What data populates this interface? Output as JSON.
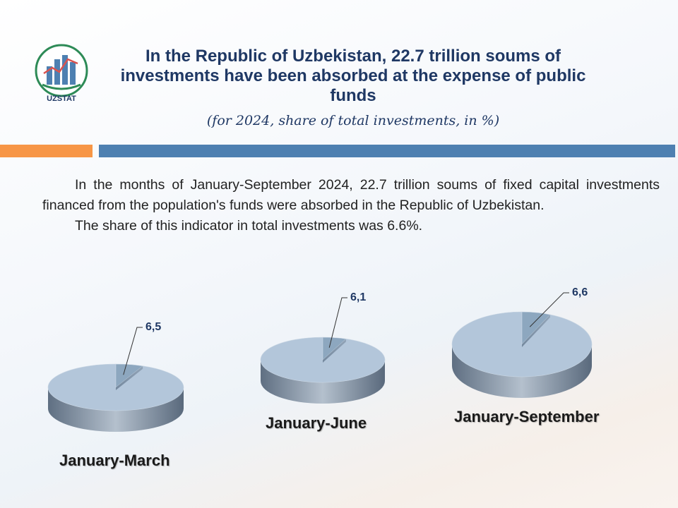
{
  "header": {
    "logo_text": "UZSTAT",
    "title": "In the Republic of Uzbekistan, 22.7 trillion soums of investments have been absorbed at the expense of public funds",
    "subtitle": "(for 2024, share of total investments, in %)"
  },
  "body": {
    "paragraph1": "In the months of January-September 2024, 22.7 trillion soums of fixed capital investments financed from the population's funds were absorbed in the Republic of Uzbekistan.",
    "paragraph2": "The share of this indicator in total investments was 6.6%."
  },
  "colors": {
    "pie_main": "#b3c6da",
    "pie_slice": "#8da7bf",
    "title_blue": "#1f3864",
    "bar_orange": "#f79646",
    "bar_blue": "#4e80b1"
  },
  "chart_data": {
    "type": "pie",
    "charts": [
      {
        "period": "January-March",
        "value": 6.5,
        "label": "6,5"
      },
      {
        "period": "January-June",
        "value": 6.1,
        "label": "6,1"
      },
      {
        "period": "January-September",
        "value": 6.6,
        "label": "6,6"
      }
    ]
  }
}
